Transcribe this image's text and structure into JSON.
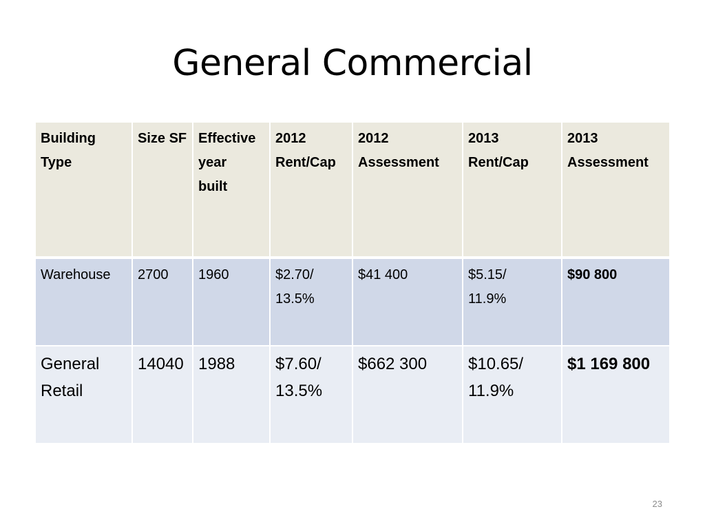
{
  "slide": {
    "title": "General Commercial",
    "page_number": "23"
  },
  "table": {
    "headers": [
      [
        "Building",
        "Type"
      ],
      [
        "Size SF"
      ],
      [
        "Effective",
        "year",
        "built"
      ],
      [
        "2012",
        "Rent/Cap"
      ],
      [
        "2012",
        "Assessment"
      ],
      [
        "2013",
        "Rent/Cap"
      ],
      [
        "2013",
        "Assessment"
      ]
    ],
    "rows": [
      [
        [
          "Warehouse"
        ],
        [
          "2700"
        ],
        [
          "1960"
        ],
        [
          "$2.70/",
          "13.5%"
        ],
        [
          "$41 400"
        ],
        [
          "$5.15/",
          "11.9%"
        ],
        [
          "$90 800"
        ]
      ],
      [
        [
          "General",
          "Retail"
        ],
        [
          "14040"
        ],
        [
          "1988"
        ],
        [
          "$7.60/",
          "13.5%"
        ],
        [
          "$662 300"
        ],
        [
          "$10.65/",
          "11.9%"
        ],
        [
          "$1 169 800"
        ]
      ]
    ]
  }
}
